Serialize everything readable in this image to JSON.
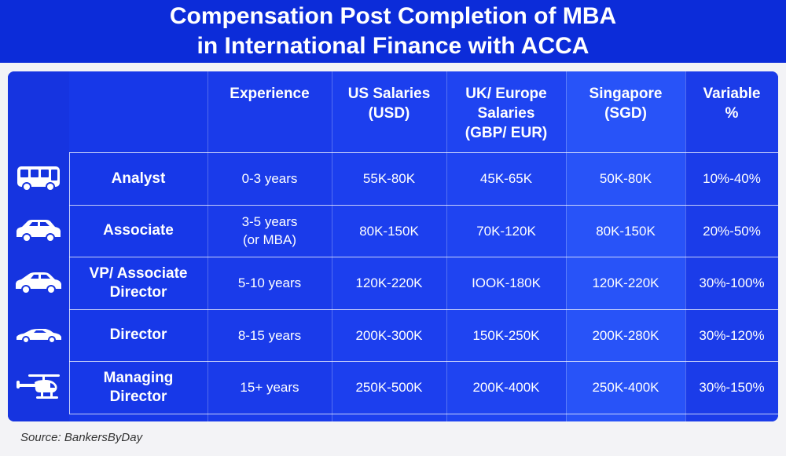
{
  "title": {
    "line1": "Compensation Post Completion of MBA",
    "line2": "in International Finance with ACCA"
  },
  "colors": {
    "title_band": "#0c2cd9",
    "table_base": "#1c3ef0",
    "text": "#ffffff"
  },
  "chart_data": {
    "type": "table",
    "columns": [
      "",
      "Experience",
      "US Salaries\n(USD)",
      "UK/ Europe\nSalaries\n(GBP/ EUR)",
      "Singapore\n(SGD)",
      "Variable\n%"
    ],
    "rows": [
      {
        "icon": "bus-icon",
        "role": "Analyst",
        "experience": "0-3 years",
        "us": "55K-80K",
        "uk": "45K-65K",
        "sg": "50K-80K",
        "variable": "10%-40%"
      },
      {
        "icon": "car-icon",
        "role": "Associate",
        "experience": "3-5 years\n(or MBA)",
        "us": "80K-150K",
        "uk": "70K-120K",
        "sg": "80K-150K",
        "variable": "20%-50%"
      },
      {
        "icon": "sedan-icon",
        "role": "VP/ Associate\nDirector",
        "experience": "5-10 years",
        "us": "120K-220K",
        "uk": "IOOK-180K",
        "sg": "120K-220K",
        "variable": "30%-100%"
      },
      {
        "icon": "sports-car-icon",
        "role": "Director",
        "experience": "8-15 years",
        "us": "200K-300K",
        "uk": "150K-250K",
        "sg": "200K-280K",
        "variable": "30%-120%"
      },
      {
        "icon": "helicopter-icon",
        "role": "Managing\nDirector",
        "experience": "15+ years",
        "us": "250K-500K",
        "uk": "200K-400K",
        "sg": "250K-400K",
        "variable": "30%-150%"
      }
    ]
  },
  "source": "Source: BankersByDay"
}
